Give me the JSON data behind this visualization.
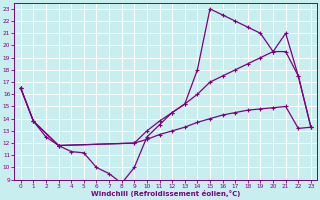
{
  "background_color": "#c8eef0",
  "grid_color": "#ffffff",
  "line_color": "#800080",
  "xlabel": "Windchill (Refroidissement éolien,°C)",
  "xlim": [
    -0.5,
    23.5
  ],
  "ylim": [
    9,
    23.5
  ],
  "xticks": [
    0,
    1,
    2,
    3,
    4,
    5,
    6,
    7,
    8,
    9,
    10,
    11,
    12,
    13,
    14,
    15,
    16,
    17,
    18,
    19,
    20,
    21,
    22,
    23
  ],
  "yticks": [
    9,
    10,
    11,
    12,
    13,
    14,
    15,
    16,
    17,
    18,
    19,
    20,
    21,
    22,
    23
  ],
  "curve1_x": [
    0,
    1,
    2,
    3,
    4,
    5,
    6,
    7,
    8,
    9,
    10,
    11,
    12,
    13,
    14,
    15,
    16,
    17,
    18,
    19,
    20,
    21,
    22,
    23
  ],
  "curve1_y": [
    16.5,
    13.8,
    12.5,
    11.8,
    11.3,
    11.2,
    10.0,
    9.5,
    8.7,
    10.0,
    12.5,
    13.5,
    14.5,
    15.2,
    18.0,
    23.0,
    22.5,
    22.0,
    21.5,
    21.0,
    19.5,
    21.0,
    17.5,
    13.3
  ],
  "curve2_x": [
    0,
    1,
    3,
    9,
    10,
    11,
    12,
    13,
    14,
    15,
    16,
    17,
    18,
    19,
    20,
    21,
    22,
    23
  ],
  "curve2_y": [
    16.5,
    13.8,
    11.8,
    12.0,
    13.0,
    13.8,
    14.5,
    15.2,
    16.0,
    17.0,
    17.5,
    18.0,
    18.5,
    19.0,
    19.5,
    19.5,
    17.5,
    13.3
  ],
  "curve3_x": [
    0,
    1,
    3,
    9,
    10,
    11,
    12,
    13,
    14,
    15,
    16,
    17,
    18,
    19,
    20,
    21,
    22,
    23
  ],
  "curve3_y": [
    16.5,
    13.8,
    11.8,
    12.0,
    12.3,
    12.7,
    13.0,
    13.3,
    13.7,
    14.0,
    14.3,
    14.5,
    14.7,
    14.8,
    14.9,
    15.0,
    13.2,
    13.3
  ]
}
